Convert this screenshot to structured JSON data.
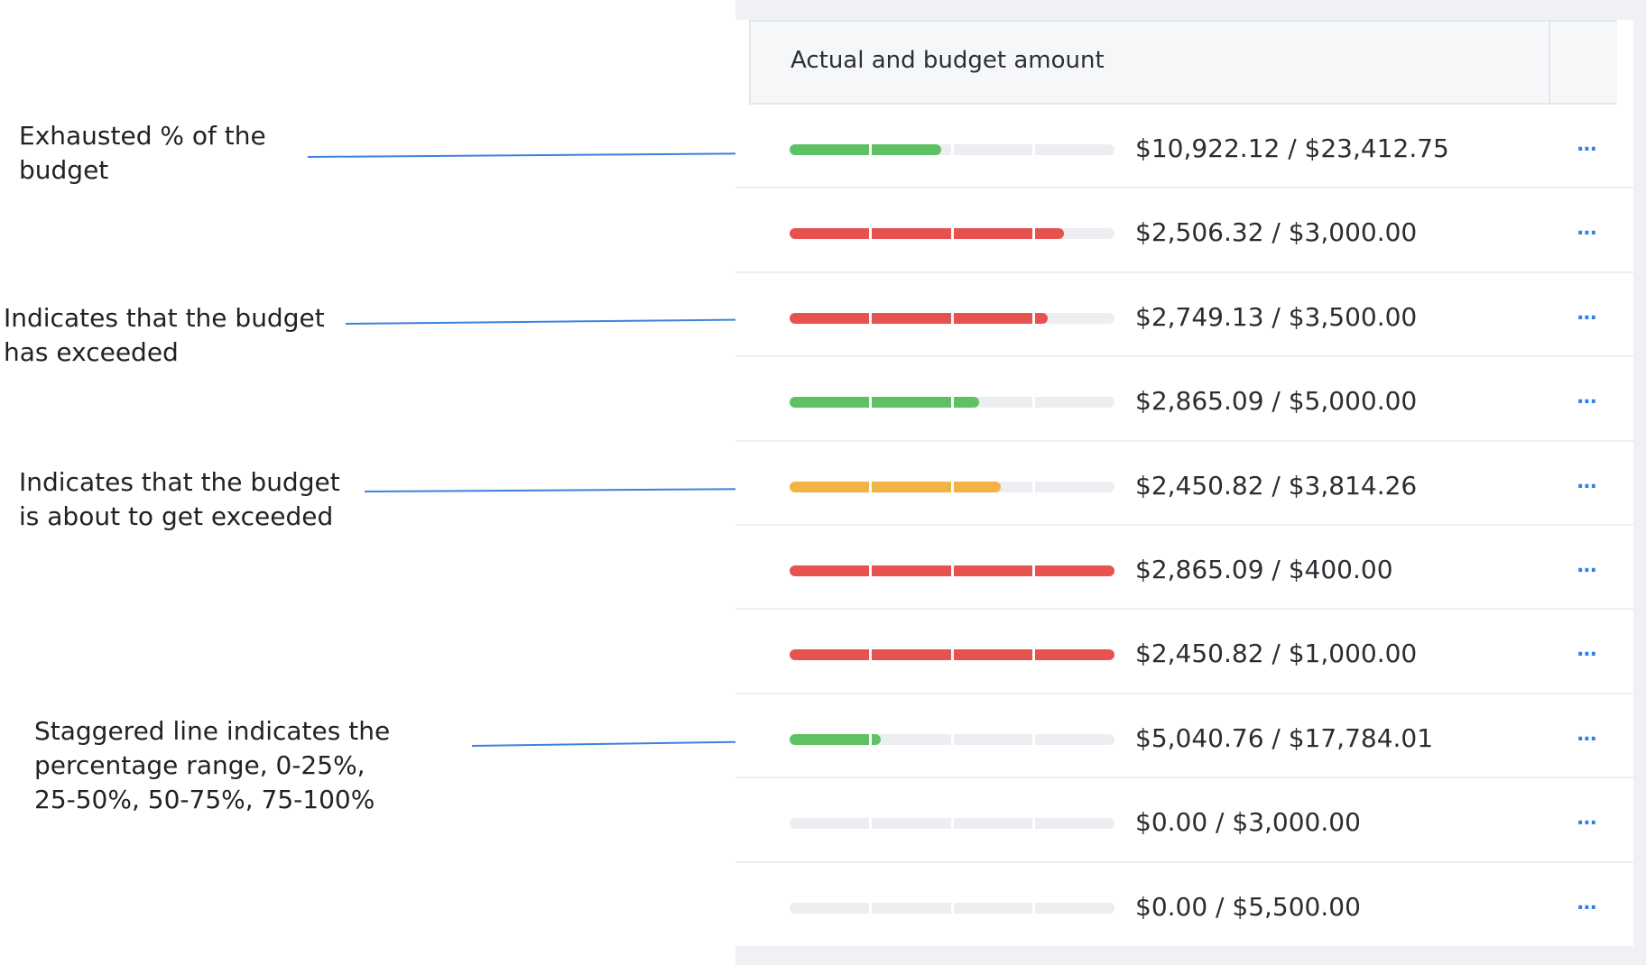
{
  "annotations": [
    {
      "text": "Exhausted % of the\nbudget"
    },
    {
      "text": "Indicates that the budget\nhas exceeded"
    },
    {
      "text": "Indicates that the budget\nis about to get exceeded"
    },
    {
      "text": "Staggered line indicates the\npercentage range, 0-25%,\n25-50%, 50-75%, 75-100%"
    }
  ],
  "table": {
    "column_header": "Actual and budget amount",
    "row_menu_icon": "more-horizontal-icon",
    "row_menu_label": "...",
    "colors": {
      "green": "#5ec264",
      "red": "#e55250",
      "orange": "#f3b244",
      "track": "#eceef1",
      "link": "#2f80ed"
    },
    "rows": [
      {
        "amount": "$10,922.12 / $23,412.75",
        "status": "green",
        "progress": 0.47
      },
      {
        "amount": "$2,506.32 / $3,000.00",
        "status": "red",
        "progress": 0.84
      },
      {
        "amount": "$2,749.13 / $3,500.00",
        "status": "red",
        "progress": 0.79
      },
      {
        "amount": "$2,865.09 / $5,000.00",
        "status": "green",
        "progress": 0.58
      },
      {
        "amount": "$2,450.82 / $3,814.26",
        "status": "orange",
        "progress": 0.65
      },
      {
        "amount": "$2,865.09 / $400.00",
        "status": "red",
        "progress": 1.0
      },
      {
        "amount": "$2,450.82 / $1,000.00",
        "status": "red",
        "progress": 1.0
      },
      {
        "amount": "$5,040.76 / $17,784.01",
        "status": "green",
        "progress": 0.28
      },
      {
        "amount": "$0.00 / $3,000.00",
        "status": "green",
        "progress": 0
      },
      {
        "amount": "$0.00 / $5,500.00",
        "status": "green",
        "progress": 0
      }
    ]
  }
}
